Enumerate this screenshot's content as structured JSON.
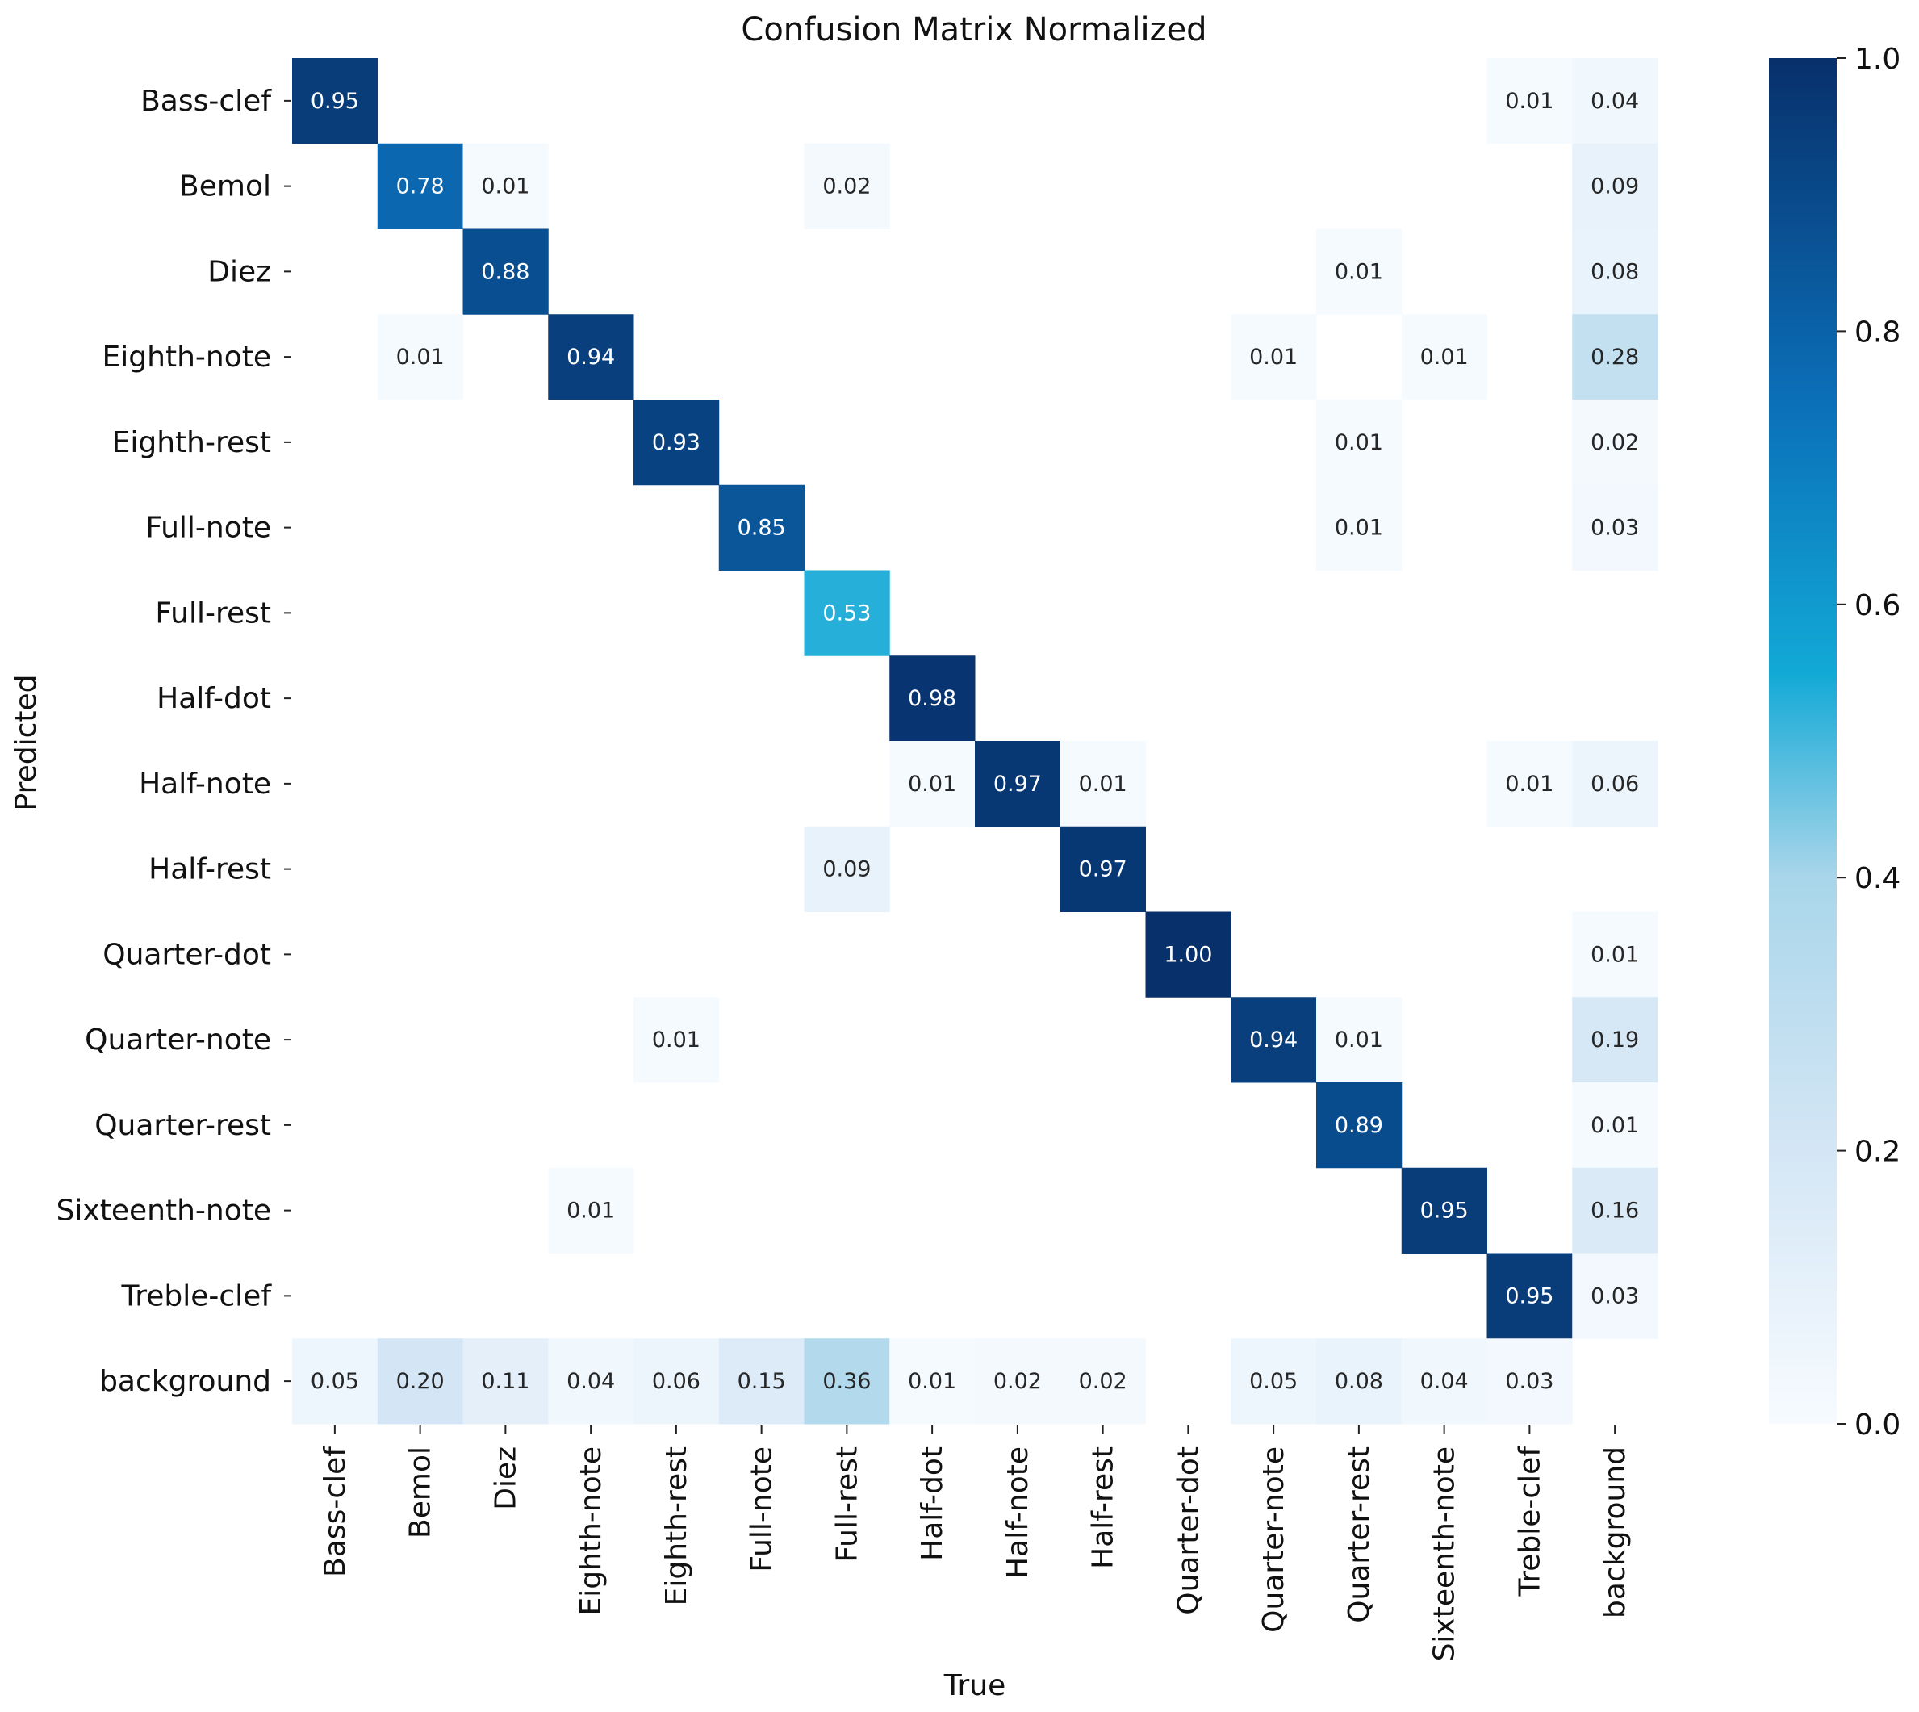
{
  "chart_data": {
    "type": "heatmap",
    "title": "Confusion Matrix Normalized",
    "xlabel": "True",
    "ylabel": "Predicted",
    "x_categories": [
      "Bass-clef",
      "Bemol",
      "Diez",
      "Eighth-note",
      "Eighth-rest",
      "Full-note",
      "Full-rest",
      "Half-dot",
      "Half-note",
      "Half-rest",
      "Quarter-dot",
      "Quarter-note",
      "Quarter-rest",
      "Sixteenth-note",
      "Treble-clef",
      "background"
    ],
    "y_categories": [
      "Bass-clef",
      "Bemol",
      "Diez",
      "Eighth-note",
      "Eighth-rest",
      "Full-note",
      "Full-rest",
      "Half-dot",
      "Half-note",
      "Half-rest",
      "Quarter-dot",
      "Quarter-note",
      "Quarter-rest",
      "Sixteenth-note",
      "Treble-clef",
      "background"
    ],
    "values": [
      [
        0.95,
        null,
        null,
        null,
        null,
        null,
        null,
        null,
        null,
        null,
        null,
        null,
        null,
        null,
        0.01,
        0.04
      ],
      [
        null,
        0.78,
        0.01,
        null,
        null,
        null,
        0.02,
        null,
        null,
        null,
        null,
        null,
        null,
        null,
        null,
        0.09
      ],
      [
        null,
        null,
        0.88,
        null,
        null,
        null,
        null,
        null,
        null,
        null,
        null,
        null,
        0.01,
        null,
        null,
        0.08
      ],
      [
        null,
        0.01,
        null,
        0.94,
        null,
        null,
        null,
        null,
        null,
        null,
        null,
        0.01,
        null,
        0.01,
        null,
        0.28
      ],
      [
        null,
        null,
        null,
        null,
        0.93,
        null,
        null,
        null,
        null,
        null,
        null,
        null,
        0.01,
        null,
        null,
        0.02
      ],
      [
        null,
        null,
        null,
        null,
        null,
        0.85,
        null,
        null,
        null,
        null,
        null,
        null,
        0.01,
        null,
        null,
        0.03
      ],
      [
        null,
        null,
        null,
        null,
        null,
        null,
        0.53,
        null,
        null,
        null,
        null,
        null,
        null,
        null,
        null,
        null
      ],
      [
        null,
        null,
        null,
        null,
        null,
        null,
        null,
        0.98,
        null,
        null,
        null,
        null,
        null,
        null,
        null,
        null
      ],
      [
        null,
        null,
        null,
        null,
        null,
        null,
        null,
        0.01,
        0.97,
        0.01,
        null,
        null,
        null,
        null,
        0.01,
        0.06
      ],
      [
        null,
        null,
        null,
        null,
        null,
        null,
        0.09,
        null,
        null,
        0.97,
        null,
        null,
        null,
        null,
        null,
        null
      ],
      [
        null,
        null,
        null,
        null,
        null,
        null,
        null,
        null,
        null,
        null,
        1.0,
        null,
        null,
        null,
        null,
        0.01
      ],
      [
        null,
        null,
        null,
        null,
        0.01,
        null,
        null,
        null,
        null,
        null,
        null,
        0.94,
        0.01,
        null,
        null,
        0.19
      ],
      [
        null,
        null,
        null,
        null,
        null,
        null,
        null,
        null,
        null,
        null,
        null,
        null,
        0.89,
        null,
        null,
        0.01
      ],
      [
        null,
        null,
        null,
        0.01,
        null,
        null,
        null,
        null,
        null,
        null,
        null,
        null,
        null,
        0.95,
        null,
        0.16
      ],
      [
        null,
        null,
        null,
        null,
        null,
        null,
        null,
        null,
        null,
        null,
        null,
        null,
        null,
        null,
        0.95,
        0.03
      ],
      [
        0.05,
        0.2,
        0.11,
        0.04,
        0.06,
        0.15,
        0.36,
        0.01,
        0.02,
        0.02,
        null,
        0.05,
        0.08,
        0.04,
        0.03,
        null
      ]
    ],
    "value_format": "0.00",
    "colormap": "Blues",
    "colorbar": {
      "range": [
        0.0,
        1.0
      ],
      "ticks": [
        "0.0",
        "0.2",
        "0.4",
        "0.6",
        "0.8",
        "1.0"
      ],
      "tick_values": [
        0.0,
        0.2,
        0.4,
        0.6,
        0.8,
        1.0
      ]
    },
    "colors": {
      "stops": [
        "#f7fbff",
        "#c6dbef",
        "#6baed6",
        "#08519c",
        "#08306b"
      ],
      "accent_mid": "#12a9d6",
      "text_dark": "#262626",
      "text_light": "#ffffff"
    }
  }
}
